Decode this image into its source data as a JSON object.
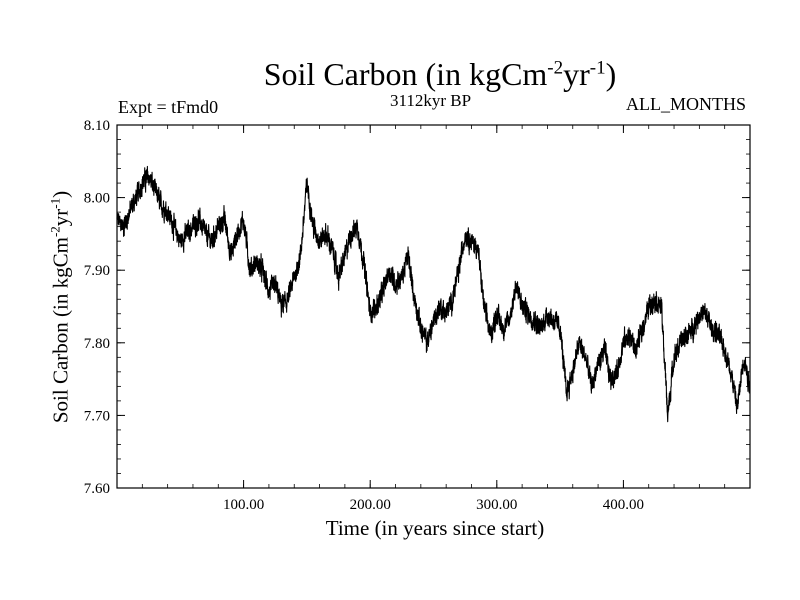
{
  "chart_data": {
    "type": "line",
    "title": {
      "main": "Soil Carbon (in kgCm",
      "sup1": "-2",
      "mid": "yr",
      "sup2": "-1",
      "end": ")"
    },
    "expt_label": "Expt = tFmd0",
    "subtitle_center": "3112kyr BP",
    "subtitle_right": "ALL_MONTHS",
    "xlabel": "Time (in years since start)",
    "ylabel": {
      "main": "Soil Carbon (in kgCm",
      "sup1": "-2",
      "mid": "yr",
      "sup2": "-1",
      "end": ")"
    },
    "xlim": [
      0,
      500
    ],
    "ylim": [
      7.6,
      8.1
    ],
    "xticks": [
      100,
      200,
      300,
      400
    ],
    "xtick_labels": [
      "100.00",
      "200.00",
      "300.00",
      "400.00"
    ],
    "yticks": [
      7.6,
      7.7,
      7.8,
      7.9,
      8.0,
      8.1
    ],
    "ytick_labels": [
      "7.60",
      "7.70",
      "7.80",
      "7.90",
      "8.00",
      "8.10"
    ],
    "series": [
      {
        "name": "Soil Carbon",
        "color": "#000000",
        "noise_amplitude": 0.012,
        "x": [
          0,
          5,
          10,
          15,
          20,
          25,
          30,
          35,
          40,
          45,
          50,
          55,
          60,
          65,
          70,
          75,
          80,
          85,
          90,
          95,
          100,
          105,
          110,
          115,
          120,
          125,
          130,
          135,
          140,
          145,
          150,
          155,
          160,
          165,
          170,
          175,
          180,
          185,
          190,
          195,
          200,
          205,
          210,
          215,
          220,
          225,
          230,
          235,
          240,
          245,
          250,
          255,
          260,
          265,
          270,
          275,
          280,
          285,
          290,
          295,
          300,
          305,
          310,
          315,
          320,
          325,
          330,
          335,
          340,
          345,
          350,
          355,
          360,
          365,
          370,
          375,
          380,
          385,
          390,
          395,
          400,
          405,
          410,
          415,
          420,
          425,
          430,
          435,
          440,
          445,
          450,
          455,
          460,
          465,
          470,
          475,
          480,
          485,
          490,
          495,
          500
        ],
        "y": [
          7.97,
          7.96,
          7.98,
          8.0,
          8.02,
          8.03,
          8.01,
          7.99,
          7.98,
          7.96,
          7.94,
          7.95,
          7.96,
          7.97,
          7.95,
          7.94,
          7.96,
          7.97,
          7.92,
          7.95,
          7.97,
          7.9,
          7.91,
          7.9,
          7.87,
          7.88,
          7.85,
          7.86,
          7.89,
          7.92,
          8.02,
          7.96,
          7.94,
          7.95,
          7.93,
          7.89,
          7.92,
          7.95,
          7.96,
          7.91,
          7.84,
          7.85,
          7.87,
          7.9,
          7.88,
          7.89,
          7.92,
          7.86,
          7.82,
          7.8,
          7.83,
          7.85,
          7.84,
          7.86,
          7.9,
          7.95,
          7.94,
          7.93,
          7.85,
          7.81,
          7.84,
          7.82,
          7.83,
          7.88,
          7.85,
          7.84,
          7.83,
          7.82,
          7.84,
          7.83,
          7.82,
          7.73,
          7.76,
          7.8,
          7.78,
          7.74,
          7.77,
          7.79,
          7.75,
          7.76,
          7.8,
          7.81,
          7.79,
          7.82,
          7.85,
          7.86,
          7.85,
          7.7,
          7.78,
          7.8,
          7.81,
          7.82,
          7.84,
          7.84,
          7.82,
          7.81,
          7.79,
          7.76,
          7.71,
          7.78,
          7.74
        ]
      }
    ]
  }
}
